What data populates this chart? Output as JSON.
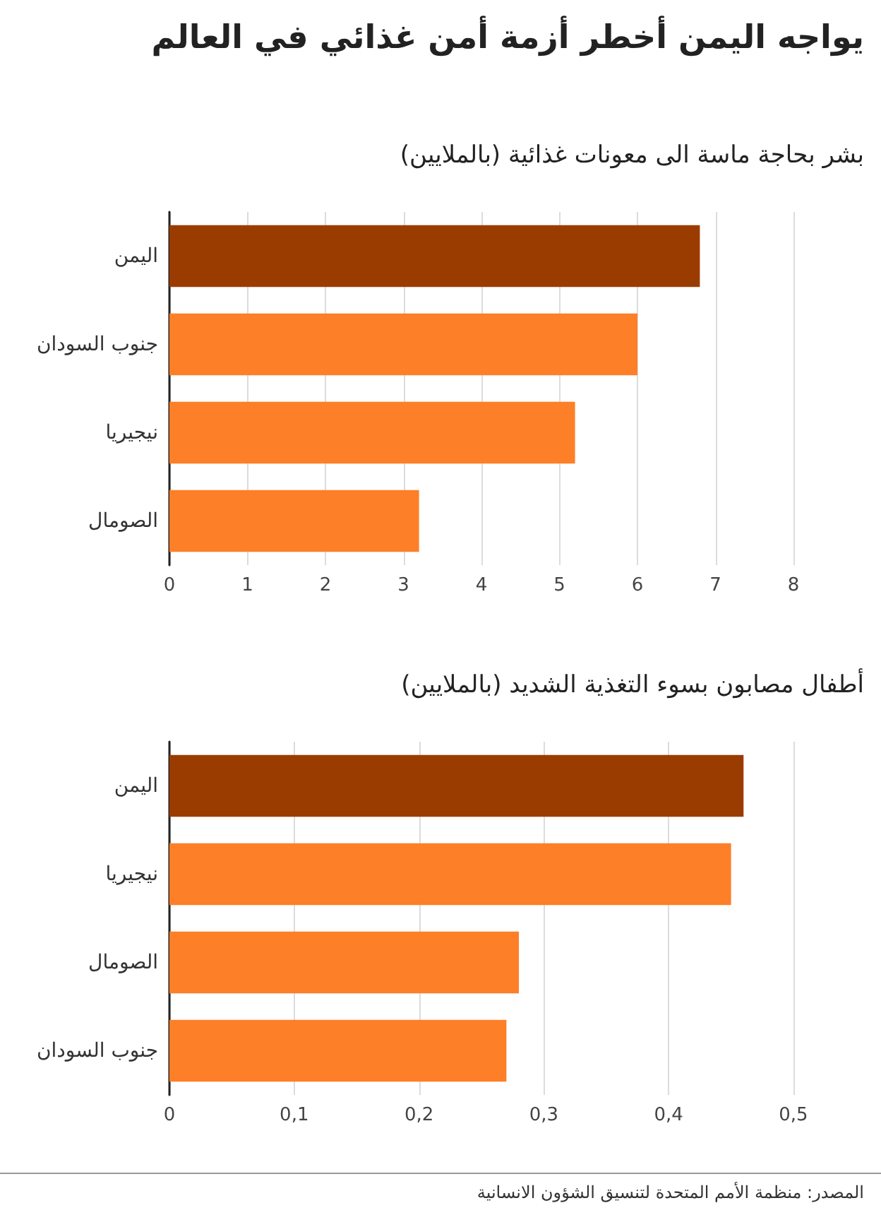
{
  "chart_data": [
    {
      "type": "bar",
      "orientation": "horizontal",
      "title": "يواجه اليمن أخطر أزمة أمن غذائي في العالم",
      "subtitle": "بشر بحاجة ماسة الى معونات غذائية (بالملايين)",
      "categories": [
        "اليمن",
        "جنوب السودان",
        "نيجيريا",
        "الصومال"
      ],
      "values": [
        6.8,
        6.0,
        5.2,
        3.2
      ],
      "colors": [
        "#9a3c00",
        "#fd7f28",
        "#fd7f28",
        "#fd7f28"
      ],
      "xlim": [
        0,
        8
      ],
      "xticks": [
        0,
        1,
        2,
        3,
        4,
        5,
        6,
        7,
        8
      ],
      "grid": "x"
    },
    {
      "type": "bar",
      "orientation": "horizontal",
      "subtitle": "أطفال مصابون بسوء التغذية الشديد (بالملايين)",
      "categories": [
        "اليمن",
        "نيجيريا",
        "الصومال",
        "جنوب السودان"
      ],
      "values": [
        0.46,
        0.45,
        0.28,
        0.27
      ],
      "colors": [
        "#9a3c00",
        "#fd7f28",
        "#fd7f28",
        "#fd7f28"
      ],
      "xlim": [
        0,
        0.5
      ],
      "xticks": [
        0,
        {
          "value": 0.1,
          "label": "0,1"
        },
        {
          "value": 0.2,
          "label": "0,2"
        },
        {
          "value": 0.3,
          "label": "0,3"
        },
        {
          "value": 0.4,
          "label": "0,4"
        },
        {
          "value": 0.5,
          "label": "0,5"
        }
      ],
      "grid": "x",
      "annotations": [
        "المصدر: منظمة الأمم المتحدة لتنسيق الشؤون الانسانية"
      ]
    }
  ]
}
